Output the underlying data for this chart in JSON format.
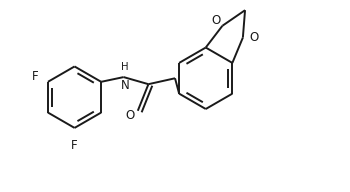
{
  "background": "#ffffff",
  "line_color": "#1a1a1a",
  "line_width": 1.4,
  "font_size": 8.5,
  "figure_size": [
    3.5,
    1.92
  ],
  "dpi": 100,
  "xlim": [
    -0.3,
    5.6
  ],
  "ylim": [
    -0.8,
    2.4
  ]
}
